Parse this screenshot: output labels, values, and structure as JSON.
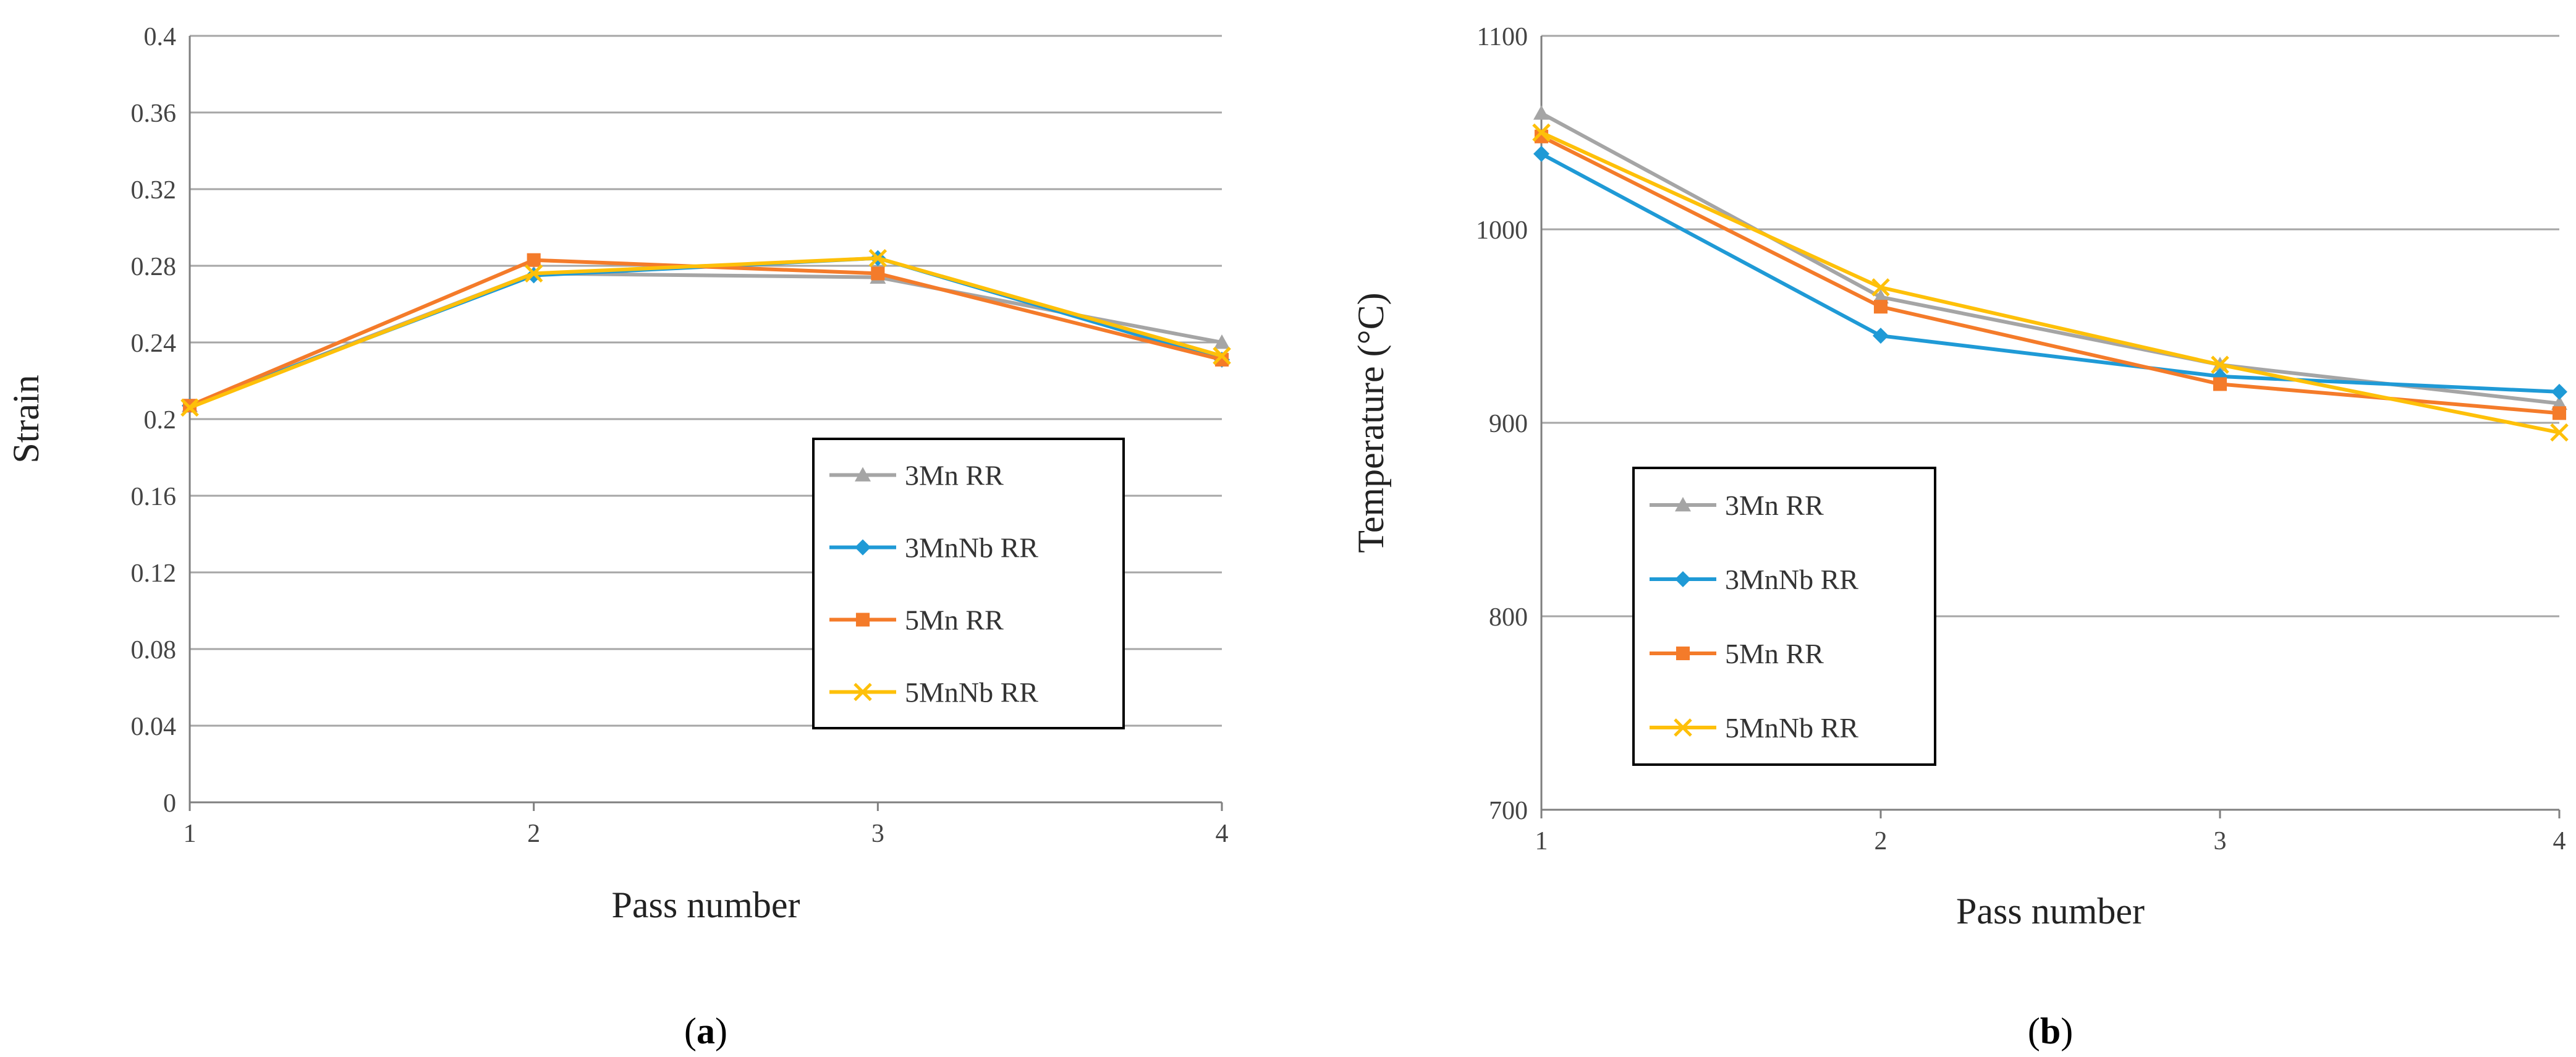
{
  "colors": {
    "3Mn RR": "#a5a5a5",
    "3MnNb RR": "#1f9ad6",
    "5Mn RR": "#f47b2a",
    "5MnNb RR": "#fec009",
    "grid": "#a6a6a6",
    "axis": "#7f7f7f"
  },
  "chart_data": [
    {
      "type": "line",
      "caption": {
        "open": "(",
        "letter": "a",
        "close": ")"
      },
      "xlabel": "Pass number",
      "ylabel": "Strain",
      "x": [
        1,
        2,
        3,
        4
      ],
      "xticks": [
        "1",
        "2",
        "3",
        "4"
      ],
      "ylim": [
        0,
        0.4
      ],
      "yticks": [
        "0",
        "0.04",
        "0.08",
        "0.12",
        "0.16",
        "0.2",
        "0.24",
        "0.28",
        "0.32",
        "0.36",
        "0.4"
      ],
      "grid": true,
      "legend_position": "bottom-right",
      "series": [
        {
          "name": "3Mn RR",
          "marker": "triangle",
          "values": [
            0.207,
            0.276,
            0.274,
            0.24
          ]
        },
        {
          "name": "3MnNb RR",
          "marker": "diamond",
          "values": [
            0.207,
            0.275,
            0.284,
            0.231
          ]
        },
        {
          "name": "5Mn RR",
          "marker": "square",
          "values": [
            0.207,
            0.283,
            0.276,
            0.231
          ]
        },
        {
          "name": "5MnNb RR",
          "marker": "x",
          "values": [
            0.206,
            0.276,
            0.284,
            0.233
          ]
        }
      ]
    },
    {
      "type": "line",
      "caption": {
        "open": "(",
        "letter": "b",
        "close": ")"
      },
      "xlabel": "Pass number",
      "ylabel": "Temperature (°C)",
      "x": [
        1,
        2,
        3,
        4
      ],
      "xticks": [
        "1",
        "2",
        "3",
        "4"
      ],
      "ylim": [
        700,
        1100
      ],
      "yticks": [
        "700",
        "800",
        "900",
        "1000",
        "1100"
      ],
      "grid": true,
      "legend_position": "bottom-left",
      "series": [
        {
          "name": "3Mn RR",
          "marker": "triangle",
          "values": [
            1060,
            965,
            930,
            910
          ]
        },
        {
          "name": "3MnNb RR",
          "marker": "diamond",
          "values": [
            1039,
            945,
            924,
            916
          ]
        },
        {
          "name": "5Mn RR",
          "marker": "square",
          "values": [
            1048,
            960,
            920,
            905
          ]
        },
        {
          "name": "5MnNb RR",
          "marker": "x",
          "values": [
            1050,
            970,
            930,
            895
          ]
        }
      ]
    }
  ]
}
